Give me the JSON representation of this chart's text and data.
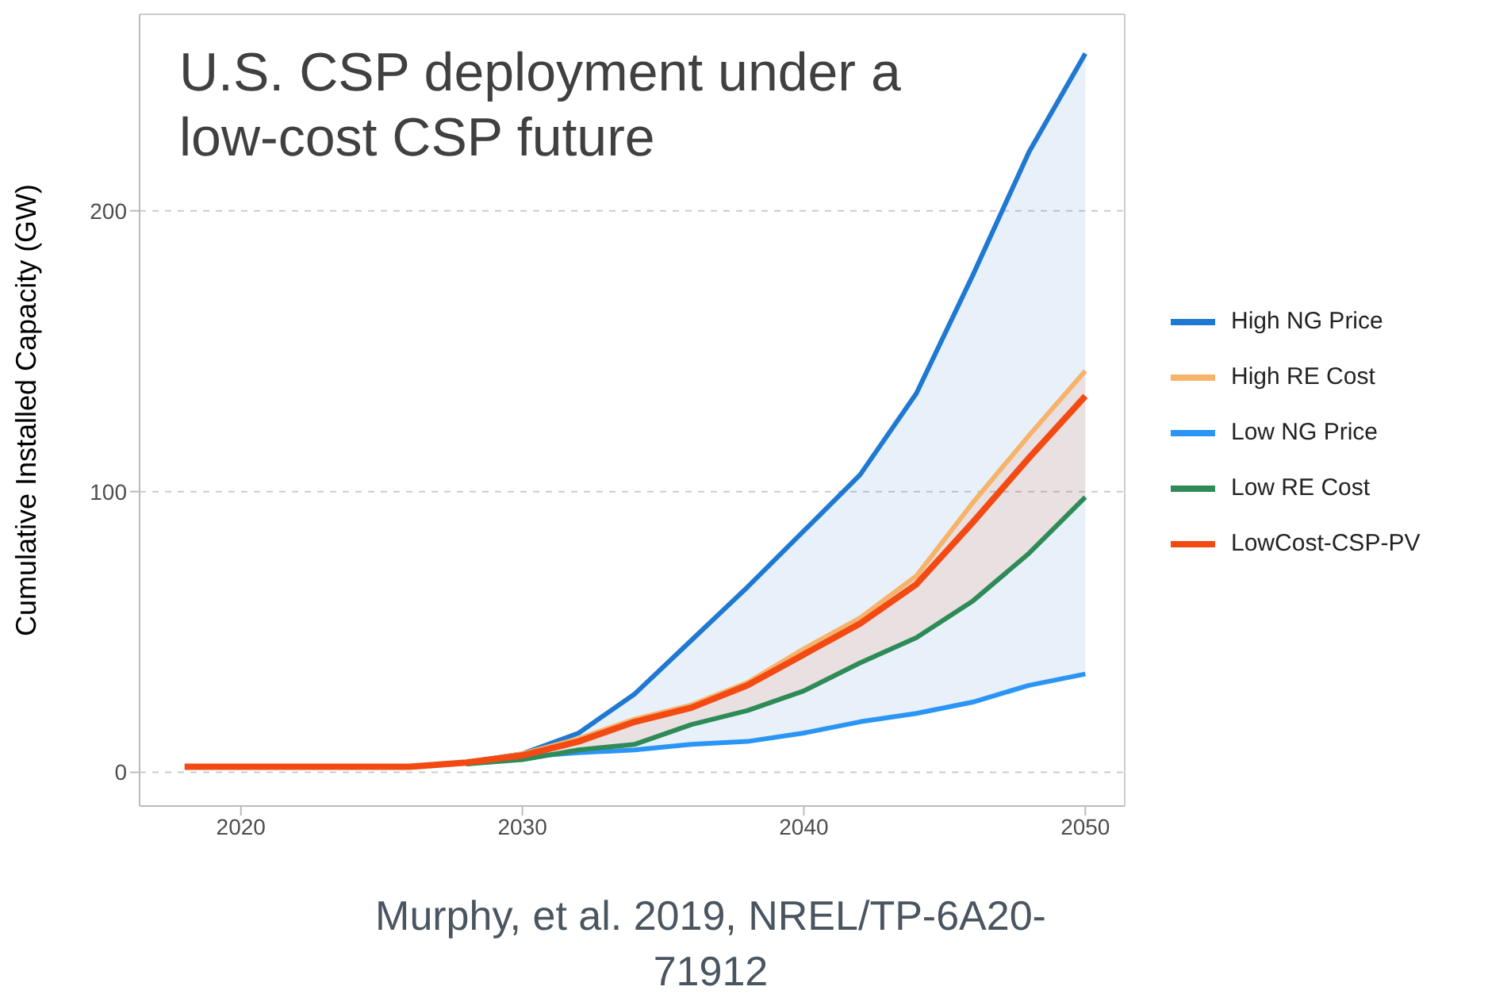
{
  "chart_data": {
    "type": "line",
    "title": "U.S. CSP deployment under a low-cost CSP future",
    "ylabel": "Cumulative Installed Capacity (GW)",
    "x": [
      2018,
      2020,
      2022,
      2024,
      2026,
      2028,
      2030,
      2032,
      2034,
      2036,
      2038,
      2040,
      2042,
      2044,
      2046,
      2048,
      2050
    ],
    "series": [
      {
        "name": "High NG Price",
        "color": "#1f78d1",
        "values": [
          null,
          null,
          null,
          null,
          null,
          3.5,
          6.6,
          14,
          28,
          47,
          66,
          86,
          106,
          135,
          177,
          221,
          256
        ],
        "lower": [
          2,
          2,
          2,
          2,
          2,
          3,
          5.5,
          7,
          8,
          10,
          11,
          14,
          18,
          21,
          25,
          31,
          35
        ],
        "upper": [
          2,
          2,
          2,
          2,
          2,
          3.5,
          6.6,
          14,
          28,
          47,
          66,
          86,
          106,
          135,
          177,
          221,
          256
        ]
      },
      {
        "name": "High RE Cost",
        "color": "#f7b36b",
        "values": [
          2,
          2,
          2,
          2,
          2,
          3.5,
          6.6,
          12,
          19,
          24,
          32,
          44,
          55,
          70,
          96,
          120,
          143
        ]
      },
      {
        "name": "Low NG Price",
        "color": "#2b95f5",
        "values": [
          null,
          null,
          null,
          null,
          null,
          3,
          5.5,
          7,
          8,
          10,
          11,
          14,
          18,
          21,
          25,
          31,
          35
        ]
      },
      {
        "name": "Low RE Cost",
        "color": "#2e8b57",
        "values": [
          null,
          null,
          null,
          null,
          null,
          3,
          4.5,
          8,
          10,
          17,
          22,
          29,
          39,
          48,
          61,
          78,
          98
        ]
      },
      {
        "name": "LowCost-CSP-PV",
        "color": "#f24a12",
        "values": [
          2,
          2,
          2,
          2,
          2,
          3.5,
          6,
          11,
          18,
          23,
          31,
          42,
          53,
          67,
          89,
          112,
          134
        ],
        "lower": [
          2,
          2,
          2,
          2,
          2,
          3,
          4.5,
          8,
          10,
          17,
          22,
          29,
          39,
          48,
          61,
          78,
          98
        ],
        "upper": [
          2,
          2,
          2,
          2,
          2,
          3.5,
          6.6,
          12,
          19,
          24,
          32,
          44,
          55,
          70,
          96,
          120,
          143
        ]
      }
    ],
    "xlim": [
      2016.4,
      2051.4
    ],
    "xticks": [
      2020,
      2030,
      2040,
      2050
    ],
    "ylim": [
      -12,
      270
    ],
    "yticks": [
      0,
      100,
      200
    ],
    "grid": "y",
    "legend": "right",
    "marker": "none",
    "line_style": "solid",
    "annotations": [
      "Murphy, et al. 2019, NREL/TP-6A20-71912"
    ]
  }
}
